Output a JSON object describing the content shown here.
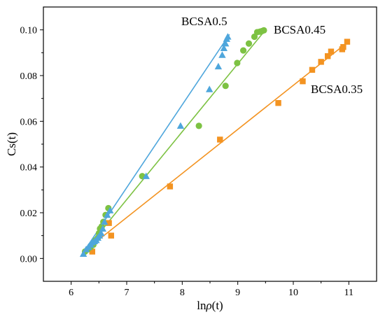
{
  "chart_data": {
    "type": "scatter",
    "title": "",
    "xlabel": "lnρ(t)",
    "ylabel": "Cs(t)",
    "xlim": [
      5.5,
      11.5
    ],
    "ylim": [
      -0.01,
      0.11
    ],
    "xticks": [
      6,
      7,
      8,
      9,
      10,
      11
    ],
    "yticks": [
      0.0,
      0.02,
      0.04,
      0.06,
      0.08,
      0.1
    ],
    "xtick_labels": [
      "6",
      "7",
      "8",
      "9",
      "10",
      "11"
    ],
    "ytick_labels": [
      "0.00",
      "0.02",
      "0.04",
      "0.06",
      "0.08",
      "0.10"
    ],
    "grid": false,
    "legend": "none",
    "series": [
      {
        "name": "BCSA0.5",
        "color": "#4ea6dc",
        "marker": "triangle",
        "x": [
          6.22,
          6.27,
          6.31,
          6.35,
          6.38,
          6.42,
          6.45,
          6.48,
          6.51,
          6.54,
          6.57,
          6.6,
          6.65,
          6.7,
          7.35,
          7.97,
          8.49,
          8.65,
          8.72,
          8.75,
          8.78,
          8.8,
          8.82
        ],
        "y": [
          0.002,
          0.004,
          0.005,
          0.006,
          0.007,
          0.0075,
          0.008,
          0.009,
          0.01,
          0.011,
          0.013,
          0.016,
          0.019,
          0.021,
          0.036,
          0.058,
          0.074,
          0.084,
          0.089,
          0.092,
          0.094,
          0.096,
          0.097
        ],
        "fit": [
          [
            6.2,
            0.002
          ],
          [
            8.85,
            0.098
          ]
        ]
      },
      {
        "name": "BCSA0.45",
        "color": "#7dc243",
        "marker": "circle",
        "x": [
          6.25,
          6.3,
          6.35,
          6.4,
          6.44,
          6.48,
          6.5,
          6.52,
          6.55,
          6.58,
          6.62,
          6.67,
          7.28,
          8.3,
          8.78,
          8.99,
          9.1,
          9.2,
          9.3,
          9.35,
          9.4,
          9.44,
          9.47
        ],
        "y": [
          0.003,
          0.004,
          0.005,
          0.006,
          0.008,
          0.009,
          0.011,
          0.013,
          0.014,
          0.016,
          0.019,
          0.022,
          0.036,
          0.058,
          0.0755,
          0.0855,
          0.091,
          0.094,
          0.097,
          0.099,
          0.0992,
          0.0995,
          0.0998
        ],
        "fit": [
          [
            6.2,
            0.002
          ],
          [
            9.5,
            0.1
          ]
        ]
      },
      {
        "name": "BCSA0.35",
        "color": "#f39321",
        "marker": "square",
        "x": [
          6.38,
          6.68,
          6.72,
          7.78,
          8.68,
          9.73,
          10.17,
          10.34,
          10.5,
          10.62,
          10.68,
          10.88,
          10.9,
          10.97
        ],
        "y": [
          0.003,
          0.0155,
          0.01,
          0.0315,
          0.052,
          0.068,
          0.0775,
          0.0825,
          0.086,
          0.0885,
          0.0905,
          0.0915,
          0.0925,
          0.0948
        ],
        "fit": [
          [
            6.2,
            0.0025
          ],
          [
            11.0,
            0.095
          ]
        ]
      }
    ]
  }
}
